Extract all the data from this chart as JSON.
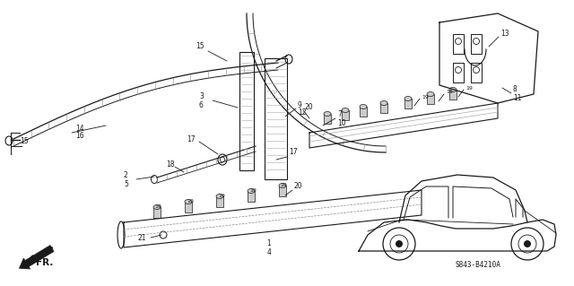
{
  "bg_color": "#ffffff",
  "lc": "#1a1a1a",
  "fig_width": 6.4,
  "fig_height": 3.19,
  "diagram_code": "S843-B4210A"
}
